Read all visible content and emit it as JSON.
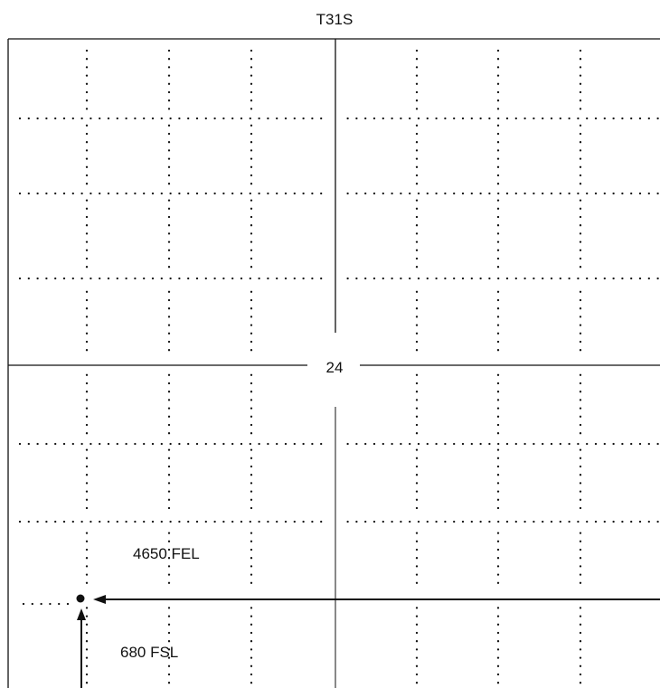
{
  "plat": {
    "township": "T31S",
    "section_number": "24"
  },
  "well": {
    "fel_callout": "4650 FEL",
    "fsl_callout": "680 FSL"
  },
  "colors": {
    "ink": "#111111",
    "background": "#ffffff"
  }
}
